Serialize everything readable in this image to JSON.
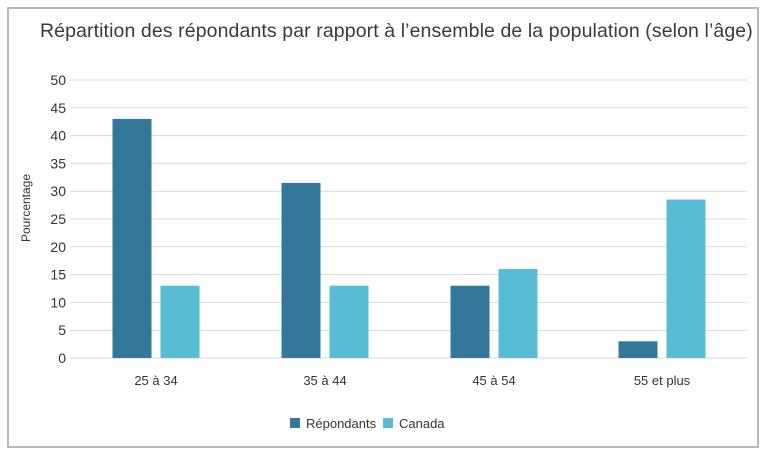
{
  "chart_data": {
    "type": "bar",
    "title": "Répartition des répondants par rapport à l’ensemble de la population (selon l’âge)",
    "xlabel": "",
    "ylabel": "Pourcentage",
    "categories": [
      "25 à 34",
      "35 à 44",
      "45 à 54",
      "55 et plus"
    ],
    "series": [
      {
        "name": "Répondants",
        "color": "#33789a",
        "values": [
          43,
          31.5,
          13,
          3
        ]
      },
      {
        "name": "Canada",
        "color": "#58bcd5",
        "values": [
          13,
          13,
          16,
          28.5
        ]
      }
    ],
    "ylim": [
      0,
      50
    ],
    "yticks": [
      0,
      5,
      10,
      15,
      20,
      25,
      30,
      35,
      40,
      45,
      50
    ],
    "grid": true,
    "legend_position": "bottom-center"
  }
}
